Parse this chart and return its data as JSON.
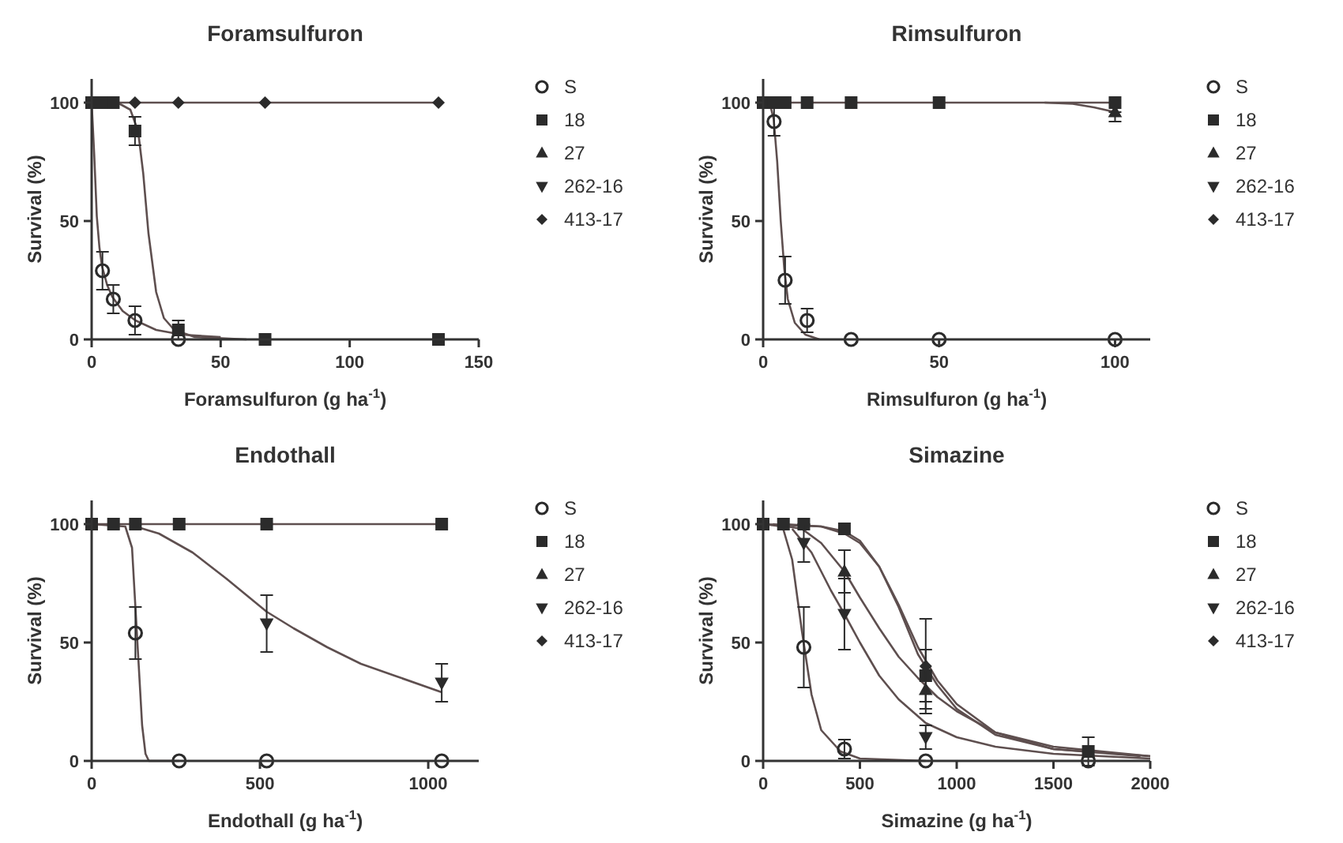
{
  "chart_data": [
    {
      "type": "scatter",
      "title": "Foramsulfuron",
      "xlabel": "Foramsulfuron (g ha$^{-1}$)",
      "ylabel": "Survival (%)",
      "x": [
        0,
        4.2,
        8.4,
        16.8,
        33.6,
        67.2,
        134.4
      ],
      "xlim": [
        0,
        150
      ],
      "xticks": [
        0,
        50,
        100,
        150
      ],
      "ylim": [
        0,
        110
      ],
      "yticks": [
        0,
        50,
        100
      ],
      "legend": "right",
      "series": [
        {
          "type": "line",
          "color": "#5e4f4f",
          "x": [
            0,
            1,
            2,
            3,
            4,
            6,
            8,
            12,
            17,
            25,
            35,
            50
          ],
          "values": [
            100,
            78,
            52,
            39,
            31,
            23,
            18,
            12,
            8,
            4,
            2,
            1
          ]
        },
        {
          "type": "line",
          "color": "#5e4f4f",
          "x": [
            10,
            15,
            18,
            20,
            22,
            25,
            28,
            32,
            40,
            60
          ],
          "values": [
            100,
            97,
            88,
            70,
            45,
            20,
            9,
            4,
            1,
            0
          ]
        },
        {
          "type": "line",
          "color": "#5e4f4f",
          "x": [
            0,
            134.4
          ],
          "values": [
            100,
            100
          ]
        },
        {
          "name": "S",
          "color": "#2b2b2b",
          "marker": "circle",
          "values": [
            null,
            29,
            17,
            8,
            0,
            null,
            null
          ],
          "errors": [
            null,
            8,
            6,
            6,
            null,
            null,
            null
          ]
        },
        {
          "name": "18",
          "color": "#2b2b2b",
          "marker": "square",
          "values": [
            100,
            100,
            100,
            88,
            4,
            0,
            0
          ],
          "errors": [
            null,
            null,
            null,
            6,
            4,
            null,
            null
          ]
        },
        {
          "name": "27",
          "color": "#2b2b2b",
          "marker": "triangle",
          "values": [
            null,
            null,
            null,
            null,
            null,
            null,
            null
          ]
        },
        {
          "name": "262-16",
          "color": "#2b2b2b",
          "marker": "triangle-down",
          "values": [
            null,
            null,
            null,
            null,
            null,
            null,
            null
          ]
        },
        {
          "name": "413-17",
          "color": "#2b2b2b",
          "marker": "diamond",
          "values": [
            null,
            null,
            null,
            100,
            100,
            100,
            100
          ]
        }
      ]
    },
    {
      "type": "scatter",
      "title": "Rimsulfuron",
      "xlabel": "Rimsulfuron (g ha$^{-1}$)",
      "ylabel": "Survival (%)",
      "x": [
        0,
        3.1,
        6.25,
        12.5,
        25,
        50,
        100
      ],
      "xlim": [
        0,
        110
      ],
      "xticks": [
        0,
        50,
        100
      ],
      "ylim": [
        0,
        110
      ],
      "yticks": [
        0,
        50,
        100
      ],
      "legend": "right",
      "series": [
        {
          "type": "line",
          "color": "#5e4f4f",
          "x": [
            0,
            2,
            3,
            4,
            5,
            6,
            7,
            9,
            12,
            16
          ],
          "values": [
            100,
            99,
            93,
            75,
            50,
            30,
            17,
            7,
            2,
            0
          ]
        },
        {
          "type": "line",
          "color": "#5e4f4f",
          "x": [
            80,
            88,
            94,
            100
          ],
          "values": [
            100,
            99.5,
            98,
            96
          ]
        },
        {
          "type": "line",
          "color": "#5e4f4f",
          "x": [
            0,
            100
          ],
          "values": [
            100,
            100
          ]
        },
        {
          "name": "S",
          "color": "#2b2b2b",
          "marker": "circle",
          "values": [
            null,
            92,
            25,
            8,
            0,
            0,
            0
          ],
          "errors": [
            null,
            6,
            10,
            5,
            null,
            null,
            null
          ]
        },
        {
          "name": "18",
          "color": "#2b2b2b",
          "marker": "square",
          "values": [
            100,
            100,
            100,
            100,
            100,
            100,
            100
          ]
        },
        {
          "name": "27",
          "color": "#2b2b2b",
          "marker": "triangle",
          "values": [
            null,
            null,
            null,
            null,
            null,
            null,
            96
          ],
          "errors": [
            null,
            null,
            null,
            null,
            null,
            null,
            [
              92,
              96
            ]
          ]
        },
        {
          "name": "262-16",
          "color": "#2b2b2b",
          "marker": "triangle-down",
          "values": [
            null,
            null,
            null,
            null,
            null,
            null,
            null
          ]
        },
        {
          "name": "413-17",
          "color": "#2b2b2b",
          "marker": "diamond",
          "values": [
            null,
            null,
            null,
            null,
            null,
            null,
            null
          ]
        }
      ]
    },
    {
      "type": "scatter",
      "title": "Endothall",
      "xlabel": "Endothall (g ha$^{-1}$)",
      "ylabel": "Survival (%)",
      "x": [
        0,
        65,
        130,
        260,
        520,
        1040
      ],
      "xlim": [
        0,
        1150
      ],
      "xticks": [
        0,
        500,
        1000
      ],
      "ylim": [
        0,
        110
      ],
      "yticks": [
        0,
        50,
        100
      ],
      "legend": "right",
      "series": [
        {
          "type": "line",
          "color": "#5e4f4f",
          "x": [
            0,
            100,
            120,
            130,
            140,
            150,
            160,
            170,
            260
          ],
          "values": [
            100,
            99,
            90,
            65,
            40,
            15,
            3,
            0,
            0
          ]
        },
        {
          "type": "line",
          "color": "#5e4f4f",
          "x": [
            130,
            200,
            300,
            400,
            520,
            600,
            700,
            800,
            900,
            1040
          ],
          "values": [
            99,
            96,
            88,
            77,
            63,
            56,
            48,
            41,
            36,
            29
          ]
        },
        {
          "type": "line",
          "color": "#5e4f4f",
          "x": [
            0,
            1040
          ],
          "values": [
            100,
            100
          ]
        },
        {
          "name": "S",
          "color": "#2b2b2b",
          "marker": "circle",
          "values": [
            null,
            null,
            54,
            0,
            0,
            0
          ],
          "errors": [
            null,
            null,
            11,
            null,
            null,
            null
          ]
        },
        {
          "name": "18",
          "color": "#2b2b2b",
          "marker": "square",
          "values": [
            100,
            100,
            100,
            100,
            100,
            100
          ]
        },
        {
          "name": "27",
          "color": "#2b2b2b",
          "marker": "triangle",
          "values": [
            null,
            null,
            null,
            null,
            null,
            null
          ]
        },
        {
          "name": "262-16",
          "color": "#2b2b2b",
          "marker": "triangle-down",
          "values": [
            null,
            null,
            null,
            null,
            58,
            33
          ],
          "errors": [
            null,
            null,
            null,
            null,
            12,
            8
          ]
        },
        {
          "name": "413-17",
          "color": "#2b2b2b",
          "marker": "diamond",
          "values": [
            null,
            null,
            null,
            null,
            null,
            null
          ]
        }
      ]
    },
    {
      "type": "scatter",
      "title": "Simazine",
      "xlabel": "Simazine (g ha$^{-1}$)",
      "ylabel": "Survival (%)",
      "x": [
        0,
        105,
        210,
        420,
        840,
        1680
      ],
      "xlim": [
        0,
        2000
      ],
      "xticks": [
        0,
        500,
        1000,
        1500,
        2000
      ],
      "ylim": [
        0,
        110
      ],
      "yticks": [
        0,
        50,
        100
      ],
      "legend": "right",
      "series": [
        {
          "type": "line",
          "color": "#5e4f4f",
          "x": [
            0,
            100,
            150,
            200,
            250,
            300,
            400,
            500,
            840
          ],
          "values": [
            100,
            99,
            85,
            55,
            28,
            13,
            4,
            1,
            0
          ]
        },
        {
          "type": "line",
          "color": "#5e4f4f",
          "x": [
            0,
            300,
            420,
            500,
            600,
            700,
            800,
            900,
            1000,
            1200,
            1500,
            2000
          ],
          "values": [
            100,
            99,
            97,
            93,
            82,
            65,
            45,
            32,
            22,
            11,
            5,
            2
          ]
        },
        {
          "type": "line",
          "color": "#5e4f4f",
          "x": [
            105,
            300,
            420,
            500,
            600,
            700,
            800,
            900,
            1000,
            1200,
            1500,
            1950
          ],
          "values": [
            100,
            99,
            96,
            92,
            82,
            66,
            48,
            34,
            24,
            12,
            5,
            2
          ]
        },
        {
          "type": "line",
          "color": "#5e4f4f",
          "x": [
            50,
            200,
            300,
            420,
            500,
            600,
            700,
            800,
            900,
            1000,
            1200,
            1500,
            2000
          ],
          "values": [
            100,
            98,
            92,
            80,
            69,
            56,
            44,
            35,
            27,
            21,
            12,
            6,
            2
          ]
        },
        {
          "type": "line",
          "color": "#5e4f4f",
          "x": [
            150,
            250,
            350,
            420,
            500,
            600,
            700,
            840,
            1000,
            1200,
            1500,
            2000
          ],
          "values": [
            98,
            88,
            72,
            62,
            50,
            36,
            26,
            16,
            10,
            6,
            3,
            1
          ]
        },
        {
          "name": "S",
          "color": "#2b2b2b",
          "marker": "circle",
          "values": [
            null,
            null,
            48,
            5,
            0,
            0
          ],
          "errors": [
            null,
            null,
            17,
            4,
            null,
            null
          ]
        },
        {
          "name": "18",
          "color": "#2b2b2b",
          "marker": "square",
          "values": [
            100,
            100,
            100,
            98,
            36,
            4
          ],
          "errors": [
            null,
            null,
            null,
            null,
            11,
            6
          ]
        },
        {
          "name": "27",
          "color": "#2b2b2b",
          "marker": "triangle",
          "values": [
            null,
            null,
            null,
            80,
            30,
            null
          ],
          "errors": [
            null,
            null,
            null,
            9,
            8,
            null
          ]
        },
        {
          "name": "262-16",
          "color": "#2b2b2b",
          "marker": "triangle-down",
          "values": [
            null,
            null,
            92,
            62,
            10,
            null
          ],
          "errors": [
            null,
            null,
            8,
            15,
            5,
            null
          ]
        },
        {
          "name": "413-17",
          "color": "#2b2b2b",
          "marker": "diamond",
          "values": [
            null,
            null,
            null,
            null,
            40,
            null
          ],
          "errors": [
            null,
            null,
            null,
            null,
            20,
            null
          ]
        }
      ]
    }
  ]
}
